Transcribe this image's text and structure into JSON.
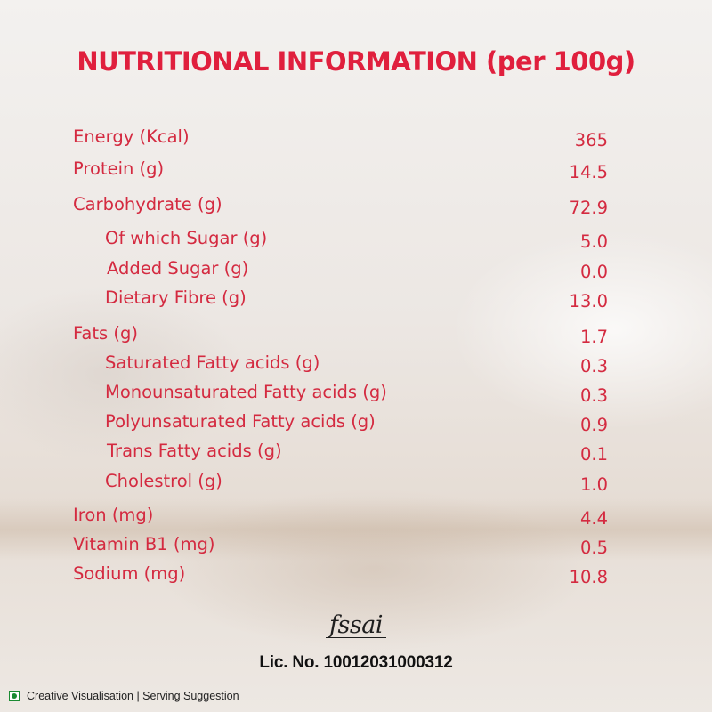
{
  "title": "NUTRITIONAL INFORMATION (per 100g)",
  "nutrients": [
    {
      "label": "Energy (Kcal)",
      "value": "365"
    },
    {
      "label": "Protein (g)",
      "value": "14.5"
    },
    {
      "label": "Carbohydrate  (g)",
      "value": "72.9"
    },
    {
      "label": "Of which Sugar  (g)",
      "value": "5.0"
    },
    {
      "label": "Added Sugar  (g)",
      "value": "0.0"
    },
    {
      "label": "Dietary Fibre  (g)",
      "value": "13.0"
    },
    {
      "label": "Fats  (g)",
      "value": "1.7"
    },
    {
      "label": "Saturated Fatty acids  (g)",
      "value": "0.3"
    },
    {
      "label": "Monounsaturated Fatty acids  (g)",
      "value": "0.3"
    },
    {
      "label": "Polyunsaturated Fatty acids  (g)",
      "value": "0.9"
    },
    {
      "label": "Trans Fatty acids  (g)",
      "value": "0.1"
    },
    {
      "label": "Cholestrol  (g)",
      "value": "1.0"
    },
    {
      "label": "Iron  (mg)",
      "value": "4.4"
    },
    {
      "label": "Vitamin B1  (mg)",
      "value": "0.5"
    },
    {
      "label": "Sodium (mg)",
      "value": "10.8"
    }
  ],
  "fssai_logo_text": "fssai",
  "license_text": "Lic. No. 10012031000312",
  "footer_text": "Creative Visualisation | Serving Suggestion",
  "colors": {
    "accent": "#e01f3d",
    "text_red": "#d42a40",
    "veg_green": "#1a8a32"
  },
  "icons": {
    "veg_mark": "veg-indicator-icon"
  }
}
